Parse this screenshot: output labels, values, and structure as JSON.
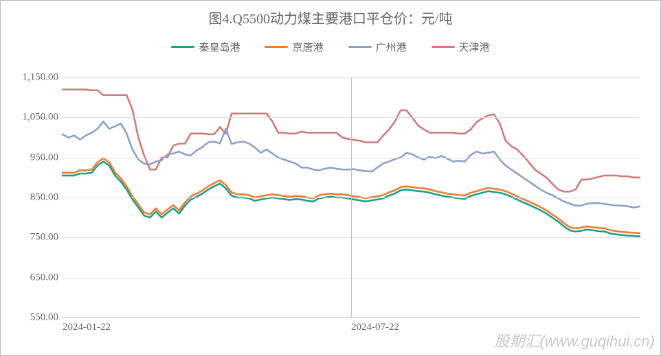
{
  "chart": {
    "type": "line",
    "title": "图4.Q5500动力煤主要港口平仓价：元/吨",
    "title_fontsize": 20,
    "title_color": "#666666",
    "label_fontsize": 15,
    "label_color": "#676767",
    "background_color": "#ffffff",
    "border_color": "#b8b8b8",
    "grid_color": "#dcdcdc",
    "axis_color": "#bfbfbf",
    "legend": {
      "items": [
        "秦皇岛港",
        "京唐港",
        "广州港",
        "天津港"
      ],
      "colors": [
        "#1f9e89",
        "#ed7d31",
        "#8fa0c9",
        "#d07b7b"
      ],
      "swatch_width": 34,
      "fontsize": 15
    },
    "y_axis": {
      "min": 550,
      "max": 1150,
      "step": 100,
      "ticks": [
        "550.00",
        "650.00",
        "750.00",
        "850.00",
        "950.00",
        "1,050.00",
        "1,150.00"
      ],
      "grid": true
    },
    "x_axis": {
      "min": 0,
      "max": 100,
      "tick_positions": [
        0,
        50
      ],
      "tick_labels": [
        "2024-01-22",
        "2024-07-22"
      ],
      "center_rule": true
    },
    "line_width": 2.6,
    "series": [
      {
        "name": "秦皇岛港",
        "color": "#1f9e89",
        "data": [
          905,
          905,
          905,
          910,
          910,
          912,
          930,
          940,
          930,
          905,
          890,
          870,
          845,
          825,
          805,
          800,
          815,
          800,
          812,
          823,
          810,
          830,
          845,
          852,
          860,
          870,
          878,
          885,
          873,
          855,
          850,
          850,
          848,
          842,
          845,
          848,
          850,
          848,
          846,
          844,
          846,
          845,
          842,
          840,
          848,
          850,
          852,
          850,
          850,
          848,
          845,
          843,
          840,
          843,
          845,
          848,
          855,
          860,
          868,
          870,
          868,
          866,
          865,
          862,
          858,
          855,
          852,
          850,
          848,
          847,
          854,
          858,
          862,
          866,
          864,
          862,
          858,
          852,
          845,
          838,
          832,
          825,
          818,
          810,
          800,
          790,
          778,
          768,
          765,
          767,
          770,
          768,
          766,
          765,
          760,
          758,
          756,
          755,
          754,
          753
        ]
      },
      {
        "name": "京唐港",
        "color": "#ed7d31",
        "data": [
          912,
          912,
          912,
          918,
          918,
          920,
          938,
          948,
          938,
          913,
          898,
          878,
          853,
          833,
          813,
          808,
          823,
          808,
          820,
          831,
          818,
          838,
          853,
          860,
          868,
          878,
          886,
          893,
          881,
          863,
          858,
          858,
          856,
          850,
          853,
          856,
          858,
          856,
          854,
          852,
          854,
          853,
          850,
          848,
          856,
          858,
          860,
          858,
          858,
          856,
          853,
          851,
          848,
          851,
          853,
          856,
          863,
          868,
          876,
          878,
          876,
          874,
          873,
          870,
          866,
          863,
          860,
          858,
          856,
          855,
          862,
          866,
          870,
          874,
          872,
          870,
          866,
          860,
          853,
          846,
          840,
          833,
          826,
          818,
          808,
          798,
          786,
          776,
          773,
          775,
          778,
          776,
          774,
          773,
          768,
          766,
          764,
          763,
          762,
          761
        ]
      },
      {
        "name": "广州港",
        "color": "#8fa0c9",
        "data": [
          1008,
          1000,
          1005,
          995,
          1005,
          1012,
          1022,
          1040,
          1022,
          1028,
          1035,
          1010,
          970,
          945,
          935,
          933,
          940,
          943,
          958,
          960,
          965,
          958,
          955,
          968,
          976,
          988,
          990,
          985,
          1022,
          984,
          988,
          990,
          985,
          975,
          962,
          970,
          960,
          950,
          945,
          940,
          935,
          925,
          925,
          920,
          918,
          922,
          925,
          922,
          920,
          920,
          921,
          918,
          916,
          915,
          925,
          935,
          940,
          946,
          950,
          962,
          958,
          950,
          945,
          952,
          948,
          954,
          947,
          940,
          942,
          940,
          956,
          965,
          960,
          962,
          965,
          945,
          930,
          920,
          910,
          900,
          890,
          880,
          870,
          862,
          856,
          848,
          840,
          835,
          830,
          830,
          835,
          836,
          836,
          834,
          832,
          830,
          830,
          828,
          825,
          828
        ]
      },
      {
        "name": "天津港",
        "color": "#d07b7b",
        "data": [
          1120,
          1120,
          1120,
          1120,
          1120,
          1118,
          1118,
          1106,
          1106,
          1106,
          1106,
          1106,
          1070,
          1000,
          955,
          920,
          920,
          950,
          950,
          980,
          985,
          985,
          1010,
          1010,
          1010,
          1008,
          1008,
          1026,
          1010,
          1060,
          1060,
          1060,
          1060,
          1060,
          1060,
          1060,
          1040,
          1012,
          1012,
          1010,
          1010,
          1015,
          1012,
          1012,
          1012,
          1012,
          1012,
          1012,
          1000,
          996,
          994,
          992,
          988,
          988,
          988,
          1005,
          1020,
          1040,
          1068,
          1068,
          1050,
          1030,
          1020,
          1012,
          1012,
          1012,
          1012,
          1012,
          1010,
          1010,
          1020,
          1038,
          1048,
          1055,
          1058,
          1035,
          992,
          978,
          970,
          955,
          938,
          920,
          910,
          900,
          885,
          870,
          865,
          865,
          870,
          895,
          895,
          898,
          902,
          905,
          905,
          905,
          903,
          903,
          900,
          900
        ]
      }
    ]
  },
  "watermark": "股期汇(www.guqihui.cn)",
  "watermark_color": "#c9c9c9",
  "watermark_fontsize": 22
}
